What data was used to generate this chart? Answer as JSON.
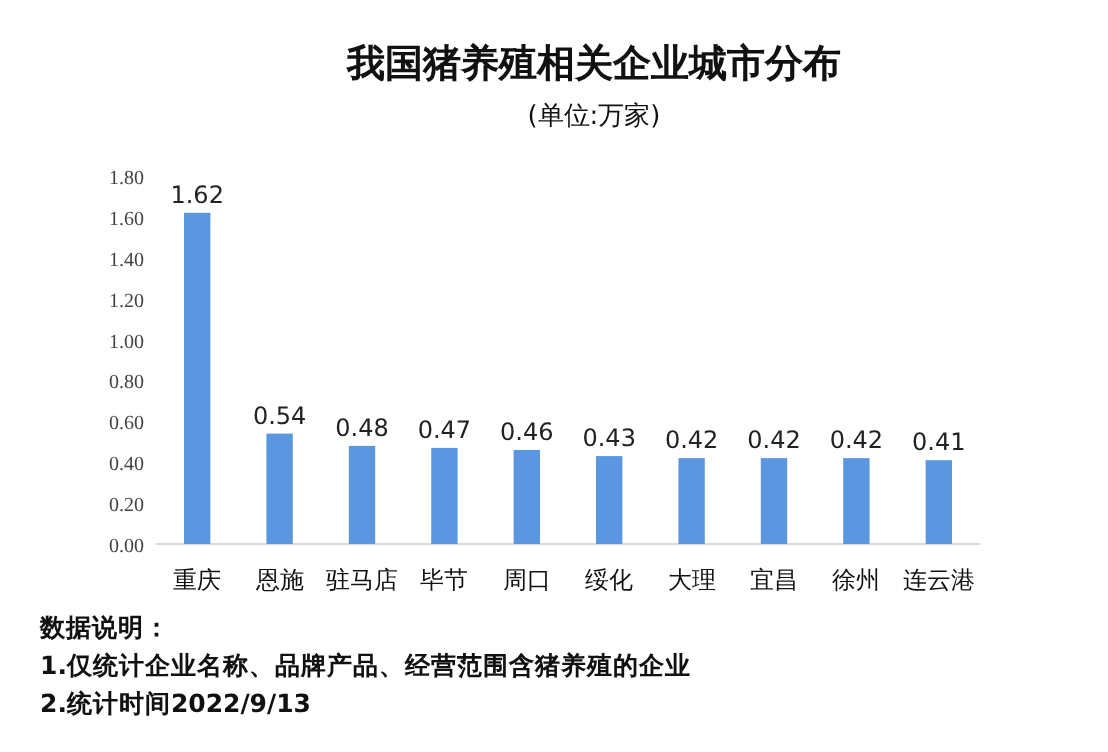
{
  "chart_data": {
    "type": "bar",
    "title": "我国猪养殖相关企业城市分布",
    "subtitle": "(单位:万家)",
    "categories": [
      "重庆",
      "恩施",
      "驻马店",
      "毕节",
      "周口",
      "绥化",
      "大理",
      "宜昌",
      "徐州",
      "连云港"
    ],
    "values": [
      1.62,
      0.54,
      0.48,
      0.47,
      0.46,
      0.43,
      0.42,
      0.42,
      0.42,
      0.41
    ],
    "color": "#5b96e0",
    "data_labels": true,
    "grid": false,
    "ylim": [
      0,
      1.8
    ],
    "yticks": [
      {
        "value": 0,
        "label": "0.00"
      },
      {
        "value": 0.2,
        "label": "0.20"
      },
      {
        "value": 0.4,
        "label": "0.40"
      },
      {
        "value": 0.6,
        "label": "0.60"
      },
      {
        "value": 0.8,
        "label": "0.80"
      },
      {
        "value": 1.0,
        "label": "1.00"
      },
      {
        "value": 1.2,
        "label": "1.20"
      },
      {
        "value": 1.4,
        "label": "1.40"
      },
      {
        "value": 1.6,
        "label": "1.60"
      },
      {
        "value": 1.8,
        "label": "1.80"
      }
    ],
    "annotations": [
      "数据说明：",
      "1.仅统计企业名称、品牌产品、经营范围含猪养殖的企业",
      "2.统计时间2022/9/13"
    ]
  }
}
